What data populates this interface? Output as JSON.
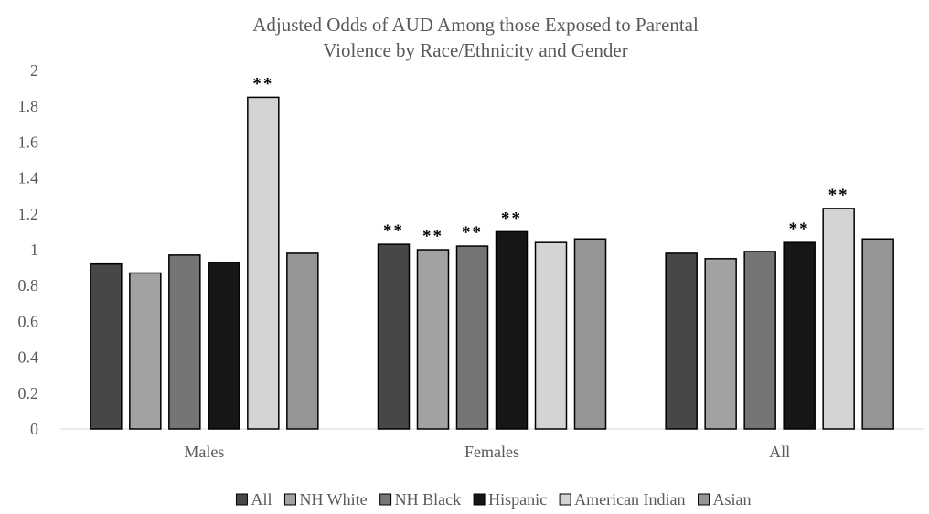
{
  "chart_data": {
    "type": "bar",
    "title_lines": [
      "Adjusted Odds of AUD Among those Exposed to Parental",
      "Violence by Race/Ethnicity and Gender"
    ],
    "categories": [
      "Males",
      "Females",
      "All"
    ],
    "ylim": [
      0,
      2
    ],
    "yticks": [
      "0",
      "0.2",
      "0.4",
      "0.6",
      "0.8",
      "1",
      "1.2",
      "1.4",
      "1.6",
      "1.8",
      "2"
    ],
    "grid": false,
    "legend_position": "bottom",
    "significance_marker": "**",
    "series": [
      {
        "name": "All",
        "color": "#474747",
        "values": [
          0.92,
          1.03,
          0.98
        ],
        "significant": [
          false,
          true,
          false
        ]
      },
      {
        "name": "NH White",
        "color": "#a2a2a2",
        "values": [
          0.87,
          1.0,
          0.95
        ],
        "significant": [
          false,
          true,
          false
        ]
      },
      {
        "name": "NH Black",
        "color": "#757575",
        "values": [
          0.97,
          1.02,
          0.99
        ],
        "significant": [
          false,
          true,
          false
        ]
      },
      {
        "name": "Hispanic",
        "color": "#161616",
        "values": [
          0.93,
          1.1,
          1.04
        ],
        "significant": [
          false,
          true,
          true
        ]
      },
      {
        "name": "American Indian",
        "color": "#d4d4d4",
        "values": [
          1.85,
          1.04,
          1.23
        ],
        "significant": [
          true,
          false,
          true
        ]
      },
      {
        "name": "Asian",
        "color": "#959595",
        "values": [
          0.98,
          1.06,
          1.06
        ],
        "significant": [
          false,
          false,
          false
        ]
      }
    ]
  }
}
